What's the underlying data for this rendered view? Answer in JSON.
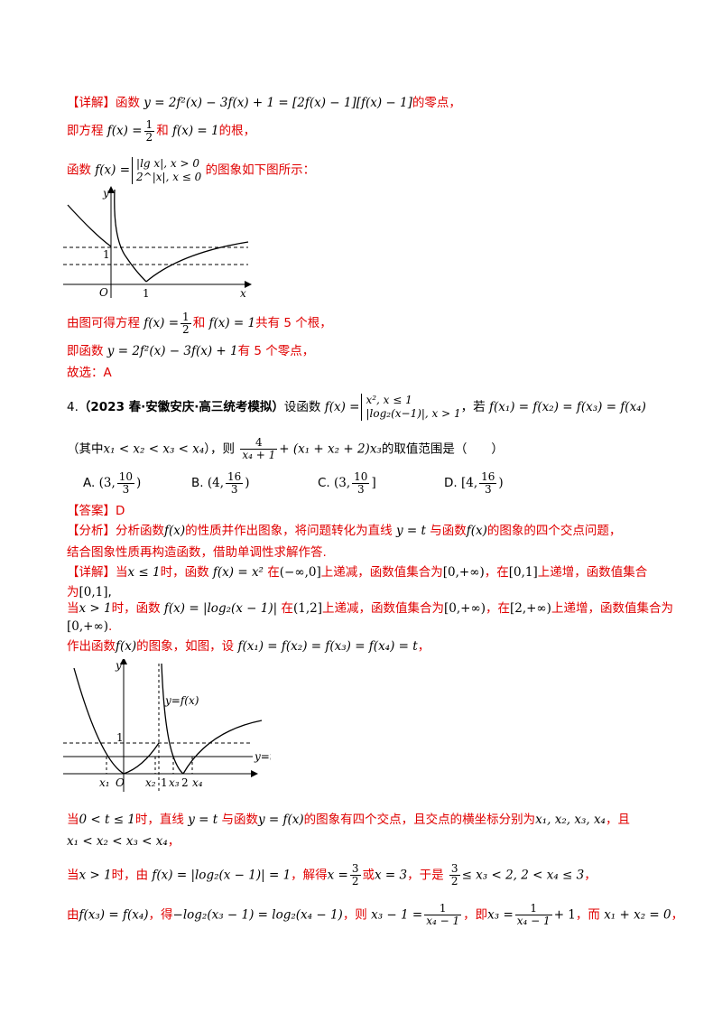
{
  "detail_label": "【详解】",
  "line1_pre": "函数",
  "line1_eq": "y = 2f²(x) − 3f(x) + 1 = [2f(x) − 1][f(x) − 1]",
  "line1_post": "的零点，",
  "line2_pre": "即方程",
  "line2_mid": "和",
  "line2_post": "的根，",
  "line3_pre": "函数",
  "line3_case1": "|lg x|, x > 0",
  "line3_case2": "2^|x|, x ≤ 0",
  "line3_post": "的图象如下图所示：",
  "graph1": {
    "y_label": "y",
    "x_label": "x",
    "origin": "O",
    "one_x": "1",
    "one_y": "1"
  },
  "line4_pre": "由图可得方程",
  "line4_mid": "和",
  "line4_post": "共有 5 个根，",
  "line5_pre": "即函数",
  "line5_eq": "y = 2f²(x) − 3f(x) + 1",
  "line5_post": "有 5 个零点，",
  "line6": "故选：A",
  "q4_number": "4.",
  "q4_source": "（2023 春·安徽安庆·高三统考模拟）",
  "q4_text1": "设函数",
  "q4_case1": "x², x ≤ 1",
  "q4_case2": "|log₂(x−1)|, x > 1",
  "q4_text2": "，若",
  "q4_eq": "f(x₁) = f(x₂) = f(x₃) = f(x₄)",
  "q4_line2_pre": "（其中",
  "q4_order": "x₁ < x₂ < x₃ < x₄",
  "q4_line2_mid": "），则",
  "q4_expr_tail": "+ (x₁ + x₂ + 2)x₃",
  "q4_line2_post": "的取值范围是（　　）",
  "choices": [
    {
      "label": "A.",
      "open": "(3,",
      "num": "10",
      "den": "3",
      "close": ")"
    },
    {
      "label": "B.",
      "open": "(4,",
      "num": "16",
      "den": "3",
      "close": ")"
    },
    {
      "label": "C.",
      "open": "(3,",
      "num": "10",
      "den": "3",
      "close": "]"
    },
    {
      "label": "D.",
      "open": "[4,",
      "num": "16",
      "den": "3",
      "close": ")"
    }
  ],
  "answer_label": "【答案】",
  "answer": "D",
  "analysis_label": "【分析】",
  "analysis_1a": "分析函数",
  "analysis_1b": "的性质并作出图象，将问题转化为直线",
  "analysis_1c": "与函数",
  "analysis_1d": "的图象的四个交点问题，",
  "analysis_2": "结合图象性质再构造函数，借助单调性求解作答.",
  "d1_a": "当",
  "d1_b": "时，函数",
  "d1_c": "在",
  "d1_d": "上递减，函数值集合为",
  "d1_e": "，在",
  "d1_f": "上递增，函数值集合",
  "d1_g": "为",
  "d2_a": "当",
  "d2_b": "时，函数",
  "d2_c": "在",
  "d2_d": "上递减，函数值集合为",
  "d2_e": "，在",
  "d2_f": "上递增，函数值集合为",
  "d3_a": "作出函数",
  "d3_b": "的图象，如图，设",
  "d3_c": "，",
  "graph2": {
    "y_label": "y",
    "fx_label": "y=f(x)",
    "t_label": "y=t",
    "one_y": "1",
    "x1": "x₁",
    "O": "O",
    "x2": "x₂",
    "one_x": "1",
    "x3": "x₃",
    "two": "2",
    "x4": "x₄"
  },
  "e1_a": "当",
  "e1_b": "时，直线",
  "e1_c": "与函数",
  "e1_d": "的图象有四个交点，且交点的横坐标分别为",
  "e1_e": "，且",
  "e2_a": "当",
  "e2_b": "时，由",
  "e2_c": "，解得",
  "e2_d": "或",
  "e2_e": "，于是",
  "e3_a": "由",
  "e3_b": "，得",
  "e3_c": "，则",
  "e3_d": "，即",
  "e3_e": "，而"
}
